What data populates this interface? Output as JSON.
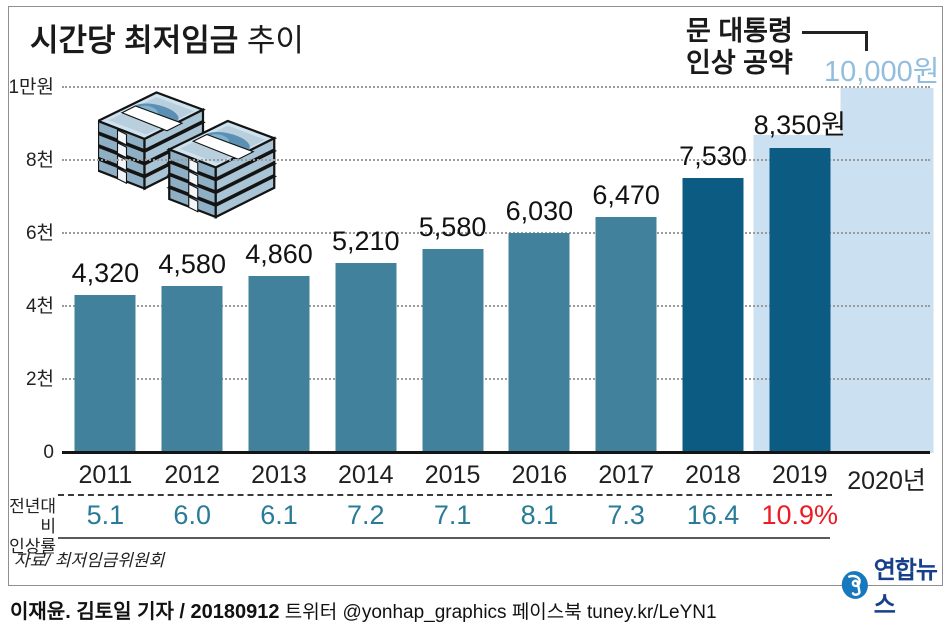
{
  "title": {
    "bold": "시간당 최저임금",
    "light": " 추이"
  },
  "annotation": {
    "line1": "문 대통령",
    "line2": "인상 공약",
    "target_label": "10,000원"
  },
  "chart_data": {
    "type": "bar",
    "title": "시간당 최저임금 추이",
    "unit": "원 (KRW/hour)",
    "categories": [
      "2011",
      "2012",
      "2013",
      "2014",
      "2015",
      "2016",
      "2017",
      "2018",
      "2019",
      "2020년"
    ],
    "series": [
      {
        "name": "시간당 최저임금(원)",
        "values": [
          4320,
          4580,
          4860,
          5210,
          5580,
          6030,
          6470,
          7530,
          8350,
          null
        ]
      },
      {
        "name": "문 대통령 인상 공약(원)",
        "values": [
          null,
          null,
          null,
          null,
          null,
          null,
          null,
          null,
          8700,
          10000
        ]
      }
    ],
    "bar_labels": [
      "4,320",
      "4,580",
      "4,860",
      "5,210",
      "5,580",
      "6,030",
      "6,470",
      "7,530",
      "8,350원",
      ""
    ],
    "growth_rates": [
      "5.1",
      "6.0",
      "6.1",
      "7.2",
      "7.1",
      "8.1",
      "7.3",
      "16.4",
      "10.9%",
      ""
    ],
    "rate_red_index": 8,
    "dark_indices": [
      7,
      8
    ],
    "ylim": [
      0,
      10000
    ],
    "yticks": [
      {
        "value": 0,
        "label": "0"
      },
      {
        "value": 2000,
        "label": "2천"
      },
      {
        "value": 4000,
        "label": "4천"
      },
      {
        "value": 6000,
        "label": "6천"
      },
      {
        "value": 8000,
        "label": "8천"
      },
      {
        "value": 10000,
        "label": "1만원"
      }
    ],
    "grid": "horizontal dotted",
    "legend_position": "none"
  },
  "rate_row": {
    "label_line1": "전년대비",
    "label_line2": "인상률"
  },
  "source": "자료/ 최저임금위원회",
  "logo": {
    "text": "연합뉴스"
  },
  "credit": {
    "bold": "이재윤. 김토일 기자 / 20180912",
    "rest": "  트위터 @yonhap_graphics  페이스북 tuney.kr/LeYN1"
  },
  "colors": {
    "bar_teal": "#41819b",
    "bar_navy": "#0b5b83",
    "bar_pledge_light_blue": "#cbe0f1",
    "target_text_blue": "#92bedd",
    "rate_teal": "#2a7b97",
    "rate_red": "#ec1c24",
    "logo_blue": "#1878be",
    "logo_text_blue": "#163f8c"
  }
}
